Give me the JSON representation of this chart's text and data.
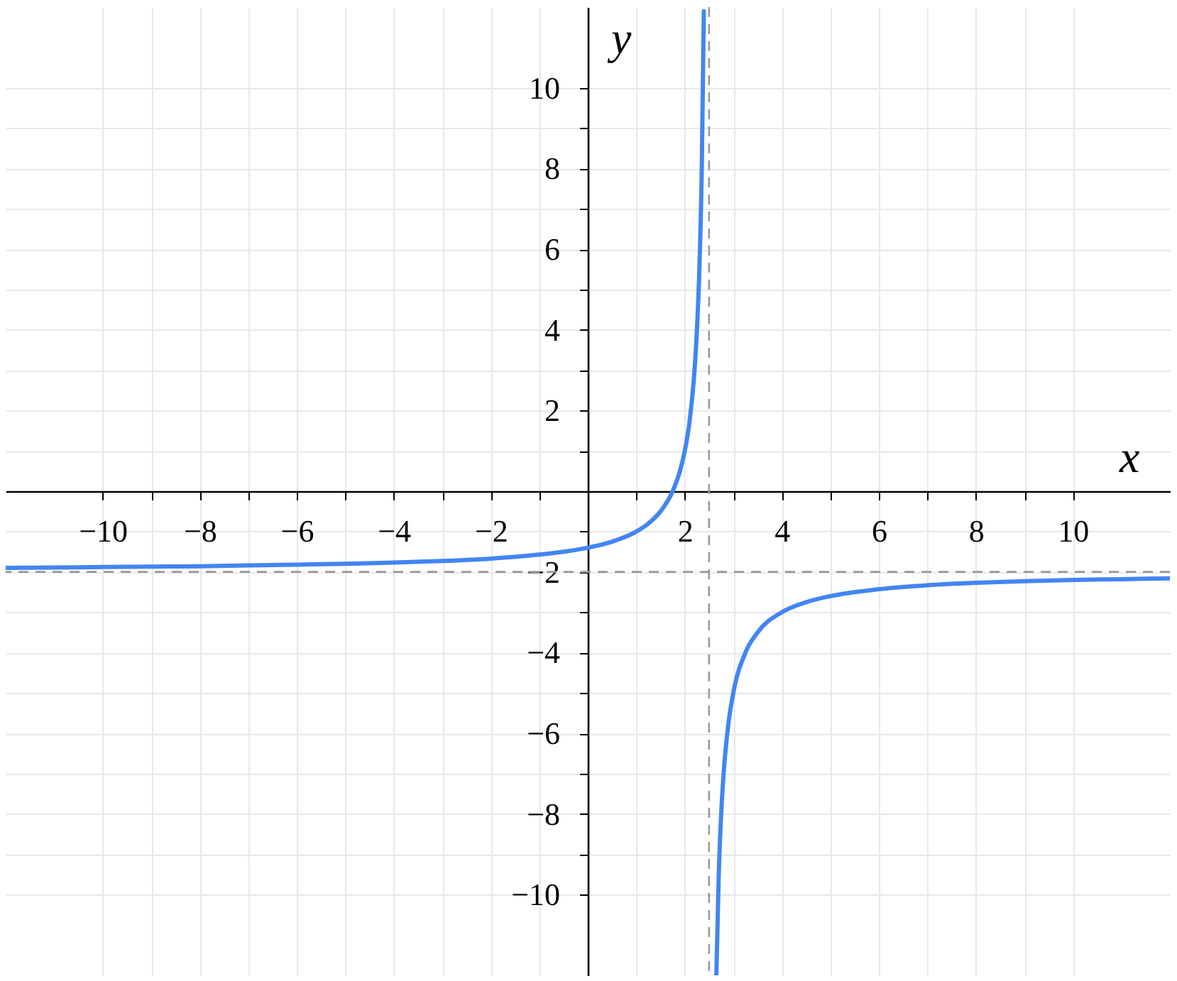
{
  "chart_data": {
    "type": "line",
    "xlabel": "x",
    "ylabel": "y",
    "x": [
      -12,
      -11,
      -10,
      -9,
      -8,
      -7,
      -6,
      -5,
      -4,
      -3,
      -2,
      -1,
      -0.5,
      0,
      0.5,
      1,
      1.25,
      1.5,
      1.75,
      1.9,
      2,
      2.1,
      2.2,
      2.25,
      2.3,
      2.35,
      2.392,
      2.5,
      2.65,
      2.7,
      2.75,
      2.8,
      2.9,
      3,
      3.25,
      3.5,
      4,
      4.5,
      5,
      6,
      7,
      8,
      9,
      10,
      11,
      12
    ],
    "series": [
      {
        "color": "#4285f4",
        "values": [
          -1.9,
          -1.89,
          -1.88,
          -1.87,
          -1.86,
          -1.84,
          -1.82,
          -1.8,
          -1.77,
          -1.73,
          -1.67,
          -1.57,
          -1.5,
          -1.4,
          -1.25,
          -1,
          -0.8,
          -0.5,
          0,
          0.5,
          1,
          1.75,
          3,
          4,
          5.5,
          8,
          11.9,
          null,
          -12,
          -9.5,
          -8,
          -7,
          -5.75,
          -5,
          -4,
          -3.5,
          -3,
          -2.75,
          -2.6,
          -2.43,
          -2.33,
          -2.27,
          -2.23,
          -2.2,
          -2.18,
          -2.16
        ]
      }
    ],
    "xlim": [
      -12,
      12
    ],
    "ylim": [
      -12,
      12
    ],
    "xticks": [
      -10,
      {
        "value": -9,
        "label": null
      },
      -8,
      {
        "value": -7,
        "label": null
      },
      -6,
      {
        "value": -5,
        "label": null
      },
      -4,
      {
        "value": -3,
        "label": null
      },
      -2,
      {
        "value": -1,
        "label": null
      },
      {
        "value": 1,
        "label": null
      },
      2,
      {
        "value": 3,
        "label": null
      },
      4,
      {
        "value": 5,
        "label": null
      },
      6,
      {
        "value": 7,
        "label": null
      },
      8,
      {
        "value": 9,
        "label": null
      },
      10
    ],
    "yticks": [
      -10,
      {
        "value": -9,
        "label": null
      },
      -8,
      {
        "value": -7,
        "label": null
      },
      -6,
      {
        "value": -5,
        "label": null
      },
      -4,
      {
        "value": -3,
        "label": null
      },
      -2,
      {
        "value": -1,
        "label": null
      },
      {
        "value": 1,
        "label": null
      },
      2,
      {
        "value": 3,
        "label": null
      },
      4,
      {
        "value": 5,
        "label": null
      },
      6,
      {
        "value": 7,
        "label": null
      },
      8,
      {
        "value": 9,
        "label": null
      },
      10
    ],
    "ref_lines": [
      {
        "axis": "x",
        "value": 2.5,
        "color": "#999999",
        "line_style": "dashed"
      },
      {
        "axis": "y",
        "value": -2,
        "color": "#999999",
        "line_style": "dashed"
      }
    ],
    "grid": true
  }
}
